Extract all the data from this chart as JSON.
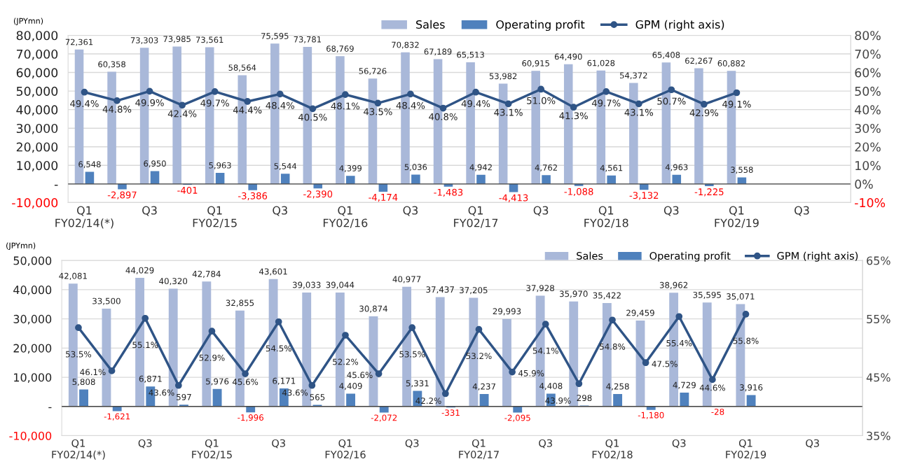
{
  "chart_data": [
    {
      "type": "bar",
      "ylabel": "(JPYmn)",
      "categories": [
        "Q1\nFY02/14(*)",
        null,
        "Q3",
        null,
        "Q1\nFY02/15",
        null,
        "Q3",
        null,
        "Q1\nFY02/16",
        null,
        "Q3",
        null,
        "Q1\nFY02/17",
        null,
        "Q3",
        null,
        "Q1\nFY02/18",
        null,
        "Q3",
        null,
        "Q1\nFY02/19",
        null,
        "Q3",
        null
      ],
      "series": [
        {
          "name": "Sales",
          "type": "bar",
          "color": "#a9b8d9",
          "values": [
            72361,
            60358,
            73303,
            73985,
            73561,
            58564,
            75595,
            73781,
            68769,
            56726,
            70832,
            67189,
            65513,
            53982,
            60915,
            64490,
            61028,
            54372,
            65408,
            62267,
            60882,
            null,
            null,
            null
          ],
          "value_labels": [
            "72,361",
            "60,358",
            "73,303",
            "73,985",
            "73,561",
            "58,564",
            "75,595",
            "73,781",
            "68,769",
            "56,726",
            "70,832",
            "67,189",
            "65,513",
            "53,982",
            "60,915",
            "64,490",
            "61,028",
            "54,372",
            "65,408",
            "62,267",
            "60,882",
            null,
            null,
            null
          ]
        },
        {
          "name": "Operating profit",
          "type": "bar",
          "color": "#4f81bd",
          "values": [
            6548,
            -2897,
            6950,
            -401,
            5963,
            -3386,
            5544,
            -2390,
            4399,
            -4174,
            5036,
            -1483,
            4942,
            -4413,
            4762,
            -1088,
            4561,
            -3132,
            4963,
            -1225,
            3558,
            null,
            null,
            null
          ],
          "value_labels": [
            "6,548",
            "-2,897",
            "6,950",
            "-401",
            "5,963",
            "-3,386",
            "5,544",
            "-2,390",
            "4,399",
            "-4,174",
            "5,036",
            "-1,483",
            "4,942",
            "-4,413",
            "4,762",
            "-1,088",
            "4,561",
            "-3,132",
            "4,963",
            "-1,225",
            "3,558",
            null,
            null,
            null
          ]
        },
        {
          "name": "GPM (right axis)",
          "type": "line",
          "axis": "y2",
          "color": "#2f5486",
          "values": [
            49.4,
            44.8,
            49.9,
            42.4,
            49.7,
            44.4,
            48.4,
            40.5,
            48.1,
            43.5,
            48.4,
            40.8,
            49.4,
            43.1,
            51.0,
            41.3,
            49.7,
            43.1,
            50.7,
            42.9,
            49.1,
            null,
            null,
            null
          ],
          "value_labels": [
            "49.4%",
            "44.8%",
            "49.9%",
            "42.4%",
            "49.7%",
            "44.4%",
            "48.4%",
            "40.5%",
            "48.1%",
            "43.5%",
            "48.4%",
            "40.8%",
            "49.4%",
            "43.1%",
            "51.0%",
            "41.3%",
            "49.7%",
            "43.1%",
            "50.7%",
            "42.9%",
            "49.1%",
            null,
            null,
            null
          ]
        }
      ],
      "ylim": [
        -10000,
        80000
      ],
      "yticks": [
        {
          "value": -10000,
          "label": "-10,000"
        },
        {
          "value": 0,
          "label": "-"
        },
        {
          "value": 10000,
          "label": "10,000"
        },
        {
          "value": 20000,
          "label": "20,000"
        },
        {
          "value": 30000,
          "label": "30,000"
        },
        {
          "value": 40000,
          "label": "40,000"
        },
        {
          "value": 50000,
          "label": "50,000"
        },
        {
          "value": 60000,
          "label": "60,000"
        },
        {
          "value": 70000,
          "label": "70,000"
        },
        {
          "value": 80000,
          "label": "80,000"
        }
      ],
      "y2lim": [
        -10,
        80
      ],
      "y2ticks": [
        {
          "value": -10,
          "label": "-10%"
        },
        {
          "value": 0,
          "label": "0%"
        },
        {
          "value": 10,
          "label": "10%"
        },
        {
          "value": 20,
          "label": "20%"
        },
        {
          "value": 30,
          "label": "30%"
        },
        {
          "value": 40,
          "label": "40%"
        },
        {
          "value": 50,
          "label": "50%"
        },
        {
          "value": 60,
          "label": "60%"
        },
        {
          "value": 70,
          "label": "70%"
        },
        {
          "value": 80,
          "label": "80%"
        }
      ],
      "grid": "y",
      "legend": "top",
      "marker": "circle"
    },
    {
      "type": "bar",
      "ylabel": "(JPYmn)",
      "categories": [
        "Q1\nFY02/14(*)",
        null,
        "Q3",
        null,
        "Q1\nFY02/15",
        null,
        "Q3",
        null,
        "Q1\nFY02/16",
        null,
        "Q3",
        null,
        "Q1\nFY02/17",
        null,
        "Q3",
        null,
        "Q1\nFY02/18",
        null,
        "Q3",
        null,
        "Q1\nFY02/19",
        null,
        "Q3",
        null
      ],
      "series": [
        {
          "name": "Sales",
          "type": "bar",
          "color": "#a9b8d9",
          "values": [
            42081,
            33500,
            44029,
            40320,
            42784,
            32855,
            43601,
            39033,
            39044,
            30874,
            40977,
            37437,
            37205,
            29993,
            37928,
            35970,
            35422,
            29459,
            38962,
            35595,
            35071,
            null,
            null,
            null
          ],
          "value_labels": [
            "42,081",
            "33,500",
            "44,029",
            "40,320",
            "42,784",
            "32,855",
            "43,601",
            "39,033",
            "39,044",
            "30,874",
            "40,977",
            "37,437",
            "37,205",
            "29,993",
            "37,928",
            "35,970",
            "35,422",
            "29,459",
            "38,962",
            "35,595",
            "35,071",
            null,
            null,
            null
          ]
        },
        {
          "name": "Operating profit",
          "type": "bar",
          "color": "#4f81bd",
          "values": [
            5808,
            -1621,
            6871,
            597,
            5976,
            -1996,
            6171,
            565,
            4409,
            -2072,
            5331,
            -331,
            4237,
            -2095,
            4408,
            298,
            4258,
            -1180,
            4729,
            -28,
            3916,
            null,
            null,
            null
          ],
          "value_labels": [
            "5,808",
            "-1,621",
            "6,871",
            "597",
            "5,976",
            "-1,996",
            "6,171",
            "565",
            "4,409",
            "-2,072",
            "5,331",
            "-331",
            "4,237",
            "-2,095",
            "4,408",
            "298",
            "4,258",
            "-1,180",
            "4,729",
            "-28",
            "3,916",
            null,
            null,
            null
          ]
        },
        {
          "name": "GPM (right axis)",
          "type": "line",
          "axis": "y2",
          "color": "#2f5486",
          "values": [
            53.5,
            46.1,
            55.1,
            43.6,
            52.9,
            45.6,
            54.5,
            43.6,
            52.2,
            45.6,
            53.5,
            42.2,
            53.2,
            45.9,
            54.1,
            43.9,
            54.8,
            47.5,
            55.4,
            44.6,
            55.8,
            null,
            null,
            null
          ],
          "value_labels": [
            "53.5%",
            "46.1%",
            "55.1%",
            "43.6%",
            "52.9%",
            "45.6%",
            "54.5%",
            "43.6%",
            "52.2%",
            "45.6%",
            "53.5%",
            "42.2%",
            "53.2%",
            "45.9%",
            "54.1%",
            "43.9%",
            "54.8%",
            "47.5%",
            "55.4%",
            "44.6%",
            "55.8%",
            null,
            null,
            null
          ]
        }
      ],
      "ylim": [
        -10000,
        50000
      ],
      "yticks": [
        {
          "value": -10000,
          "label": "-10,000"
        },
        {
          "value": 0,
          "label": "-"
        },
        {
          "value": 10000,
          "label": "10,000"
        },
        {
          "value": 20000,
          "label": "20,000"
        },
        {
          "value": 30000,
          "label": "30,000"
        },
        {
          "value": 40000,
          "label": "40,000"
        },
        {
          "value": 50000,
          "label": "50,000"
        }
      ],
      "y2lim": [
        35,
        65
      ],
      "y2ticks": [
        {
          "value": 35,
          "label": "35%"
        },
        {
          "value": 45,
          "label": "45%"
        },
        {
          "value": 55,
          "label": "55%"
        },
        {
          "value": 65,
          "label": "65%"
        }
      ],
      "grid": "y",
      "legend": "top right",
      "marker": "circle"
    }
  ]
}
